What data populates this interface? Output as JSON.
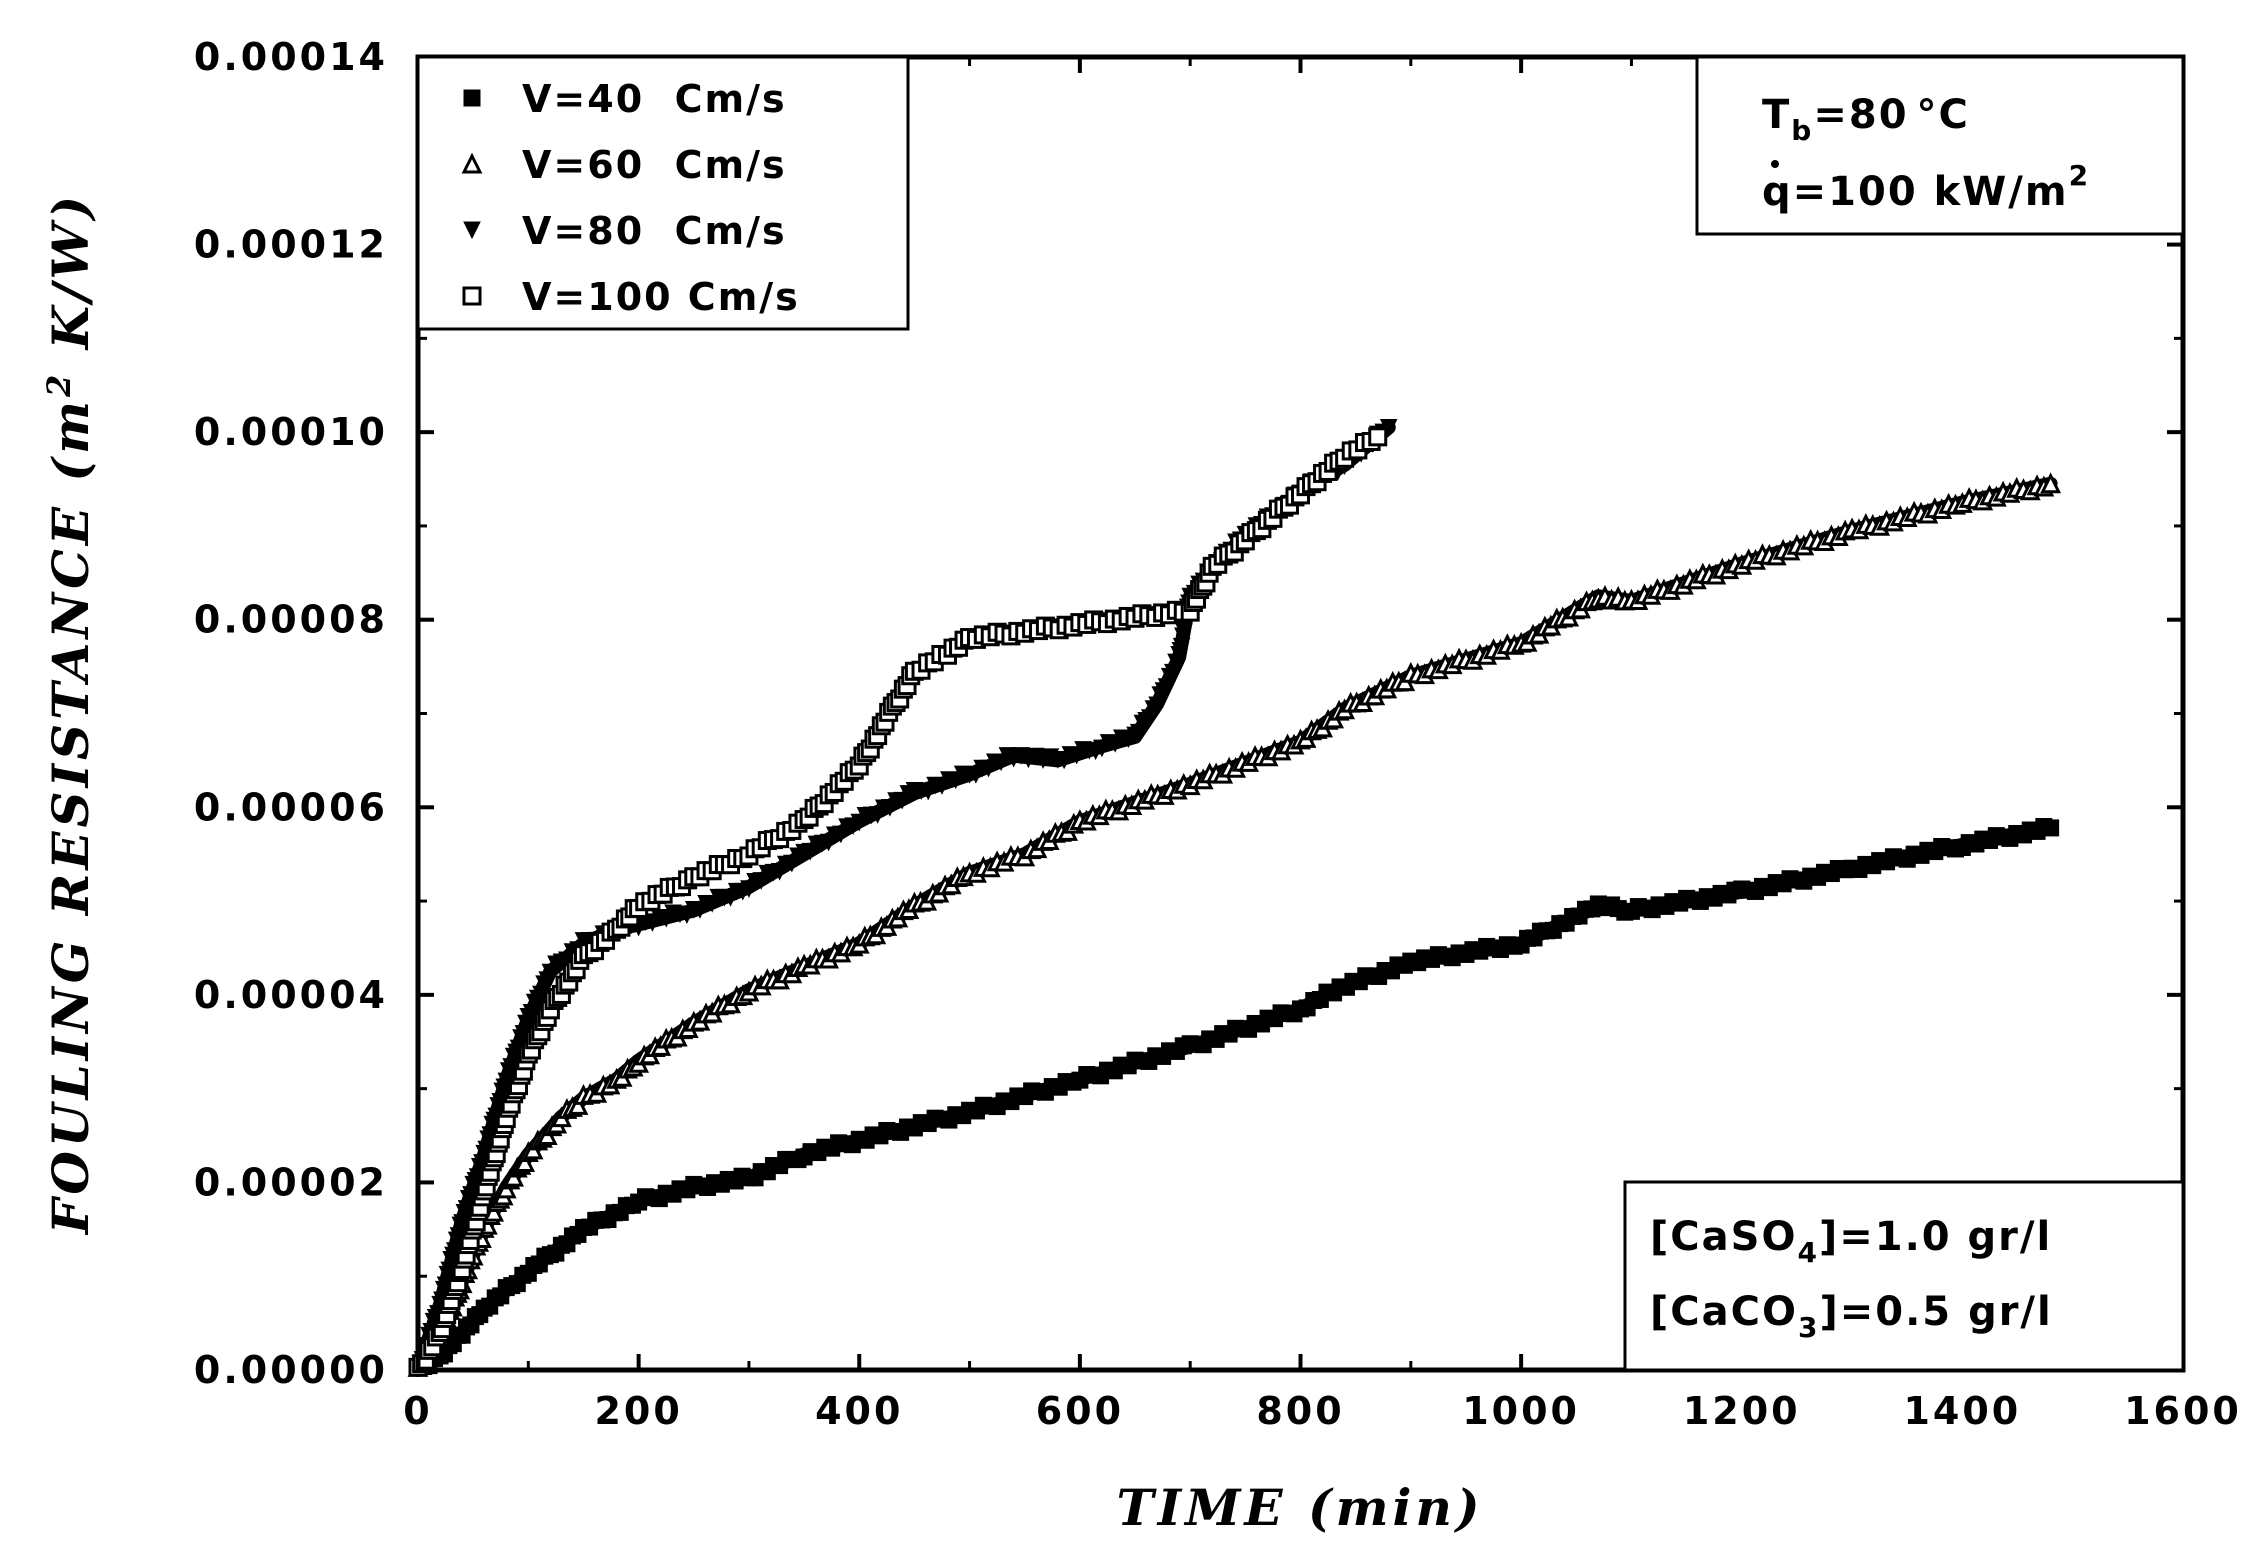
{
  "chart_data": {
    "type": "scatter",
    "title": "",
    "xlabel": "TIME (min)",
    "ylabel_main": "FOULING RESISTANCE (m",
    "ylabel_sup": "2",
    "ylabel_end": " K/W)",
    "xlim": [
      0,
      1600
    ],
    "ylim": [
      0,
      0.00014
    ],
    "x_ticks": [
      0,
      200,
      400,
      600,
      800,
      1000,
      1200,
      1400,
      1600
    ],
    "x_tick_labels": [
      "0",
      "200",
      "400",
      "600",
      "800",
      "1000",
      "1200",
      "1400",
      "1600"
    ],
    "y_ticks": [
      0,
      2e-05,
      4e-05,
      6e-05,
      8e-05,
      0.0001,
      0.00012,
      0.00014
    ],
    "y_tick_labels": [
      "0.00000",
      "0.00002",
      "0.00004",
      "0.00006",
      "0.00008",
      "0.00010",
      "0.00012",
      "0.00014"
    ],
    "legend_position": "top-left",
    "series": [
      {
        "name": "V=40  Cm/s",
        "marker": "filled-square",
        "x": [
          0,
          20,
          40,
          60,
          100,
          150,
          200,
          250,
          300,
          350,
          400,
          450,
          500,
          600,
          700,
          800,
          830,
          900,
          1000,
          1070,
          1100,
          1200,
          1300,
          1400,
          1480
        ],
        "y": [
          0.0,
          1.5e-06,
          4e-06,
          6.5e-06,
          1.05e-05,
          1.5e-05,
          1.8e-05,
          1.95e-05,
          2.05e-05,
          2.3e-05,
          2.45e-05,
          2.6e-05,
          2.75e-05,
          3.1e-05,
          3.45e-05,
          3.85e-05,
          4.05e-05,
          4.35e-05,
          4.55e-05,
          4.95e-05,
          4.9e-05,
          5.1e-05,
          5.35e-05,
          5.6e-05,
          5.78e-05
        ]
      },
      {
        "name": "V=60  Cm/s",
        "marker": "open-triangle-up",
        "x": [
          0,
          20,
          40,
          60,
          80,
          100,
          130,
          150,
          180,
          200,
          250,
          300,
          350,
          400,
          450,
          500,
          550,
          600,
          700,
          800,
          840,
          900,
          1000,
          1070,
          1100,
          1200,
          1300,
          1400,
          1480
        ],
        "y": [
          0.0,
          3.5e-06,
          9.5e-06,
          1.5e-05,
          1.95e-05,
          2.3e-05,
          2.7e-05,
          2.9e-05,
          3.1e-05,
          3.3e-05,
          3.7e-05,
          4.05e-05,
          4.3e-05,
          4.55e-05,
          4.95e-05,
          5.3e-05,
          5.5e-05,
          5.85e-05,
          6.25e-05,
          6.7e-05,
          7.05e-05,
          7.4e-05,
          7.75e-05,
          8.25e-05,
          8.2e-05,
          8.6e-05,
          8.95e-05,
          9.25e-05,
          9.45e-05
        ]
      },
      {
        "name": "V=80  Cm/s",
        "marker": "filled-triangle-down",
        "x": [
          0,
          20,
          40,
          60,
          80,
          100,
          120,
          150,
          180,
          200,
          250,
          300,
          350,
          400,
          450,
          500,
          540,
          580,
          620,
          650,
          670,
          690,
          700,
          720,
          750,
          780,
          810,
          840,
          870,
          880
        ],
        "y": [
          0.0,
          7e-06,
          1.6e-05,
          2.3e-05,
          3.1e-05,
          3.75e-05,
          4.25e-05,
          4.55e-05,
          4.7e-05,
          4.75e-05,
          4.9e-05,
          5.15e-05,
          5.5e-05,
          5.85e-05,
          6.15e-05,
          6.35e-05,
          6.55e-05,
          6.5e-05,
          6.65e-05,
          6.75e-05,
          7.1e-05,
          7.6e-05,
          8.25e-05,
          8.55e-05,
          8.9e-05,
          9.15e-05,
          9.45e-05,
          9.65e-05,
          9.95e-05,
          0.0001005
        ]
      },
      {
        "name": "V=100 Cm/s",
        "marker": "open-square",
        "x": [
          0,
          20,
          40,
          60,
          80,
          100,
          120,
          150,
          180,
          200,
          250,
          300,
          350,
          400,
          430,
          450,
          480,
          500,
          700,
          720,
          750,
          780,
          810,
          840,
          870
        ],
        "y": [
          0.0,
          4e-06,
          1.1e-05,
          1.9e-05,
          2.7e-05,
          3.35e-05,
          3.85e-05,
          4.4e-05,
          4.7e-05,
          4.95e-05,
          5.25e-05,
          5.5e-05,
          5.85e-05,
          6.45e-05,
          7.05e-05,
          7.45e-05,
          7.65e-05,
          7.8e-05,
          8.1e-05,
          8.55e-05,
          8.85e-05,
          9.15e-05,
          9.45e-05,
          9.75e-05,
          9.95e-05
        ]
      }
    ],
    "annotations": {
      "conditions": {
        "tb_label": "T",
        "tb_sub": "b",
        "tb_value": "=80",
        "tb_unit": "°C",
        "q_label": "q=100 kW/m",
        "q_sup": "2"
      },
      "concentrations": {
        "caso4_open": "[CaSO",
        "caso4_sub": "4",
        "caso4_value": "]=1.0 gr/l",
        "caco3_open": "[CaCO",
        "caco3_sub": "3",
        "caco3_value": "]=0.5 gr/l"
      }
    }
  }
}
